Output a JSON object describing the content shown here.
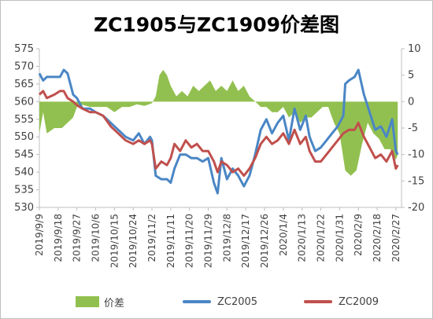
{
  "chart_data": {
    "type": "line",
    "title": "ZC1905与ZC1909价差图",
    "categories": [
      "2019/9/9",
      "2019/9/18",
      "2019/9/27",
      "2019/10/6",
      "2019/10/15",
      "2019/10/24",
      "2019/11/2",
      "2019/11/11",
      "2019/11/20",
      "2019/11/29",
      "2019/12/8",
      "2019/12/17",
      "2019/12/26",
      "2020/1/4",
      "2020/1/13",
      "2020/1/22",
      "2020/1/31",
      "2020/2/9",
      "2020/2/18",
      "2020/2/27"
    ],
    "left_axis": {
      "min": 530,
      "max": 575,
      "step": 5
    },
    "right_axis": {
      "min": -20,
      "max": 10,
      "step": 5
    },
    "legend_position": "bottom",
    "grid": false,
    "series": [
      {
        "name": "价差",
        "kind": "area",
        "axis": "right",
        "color": "#92c050",
        "points": [
          [
            0,
            -6
          ],
          [
            0.2,
            -2
          ],
          [
            0.4,
            -6
          ],
          [
            0.8,
            -5
          ],
          [
            1.2,
            -5
          ],
          [
            1.5,
            -4
          ],
          [
            1.8,
            -3
          ],
          [
            2.0,
            -1
          ],
          [
            2.3,
            -0.6
          ],
          [
            2.7,
            -1
          ],
          [
            3.2,
            -1
          ],
          [
            3.6,
            -1
          ],
          [
            4.0,
            -2
          ],
          [
            4.4,
            -1
          ],
          [
            4.8,
            -1
          ],
          [
            5.2,
            -0.5
          ],
          [
            5.6,
            -0.8
          ],
          [
            6.0,
            -0.3
          ],
          [
            6.2,
            1
          ],
          [
            6.4,
            5
          ],
          [
            6.6,
            6
          ],
          [
            6.8,
            5
          ],
          [
            7.0,
            3
          ],
          [
            7.3,
            1
          ],
          [
            7.6,
            2
          ],
          [
            7.9,
            1
          ],
          [
            8.2,
            3
          ],
          [
            8.5,
            2
          ],
          [
            8.8,
            3
          ],
          [
            9.1,
            4
          ],
          [
            9.4,
            2
          ],
          [
            9.7,
            3
          ],
          [
            10.0,
            2
          ],
          [
            10.3,
            4
          ],
          [
            10.6,
            2
          ],
          [
            10.9,
            3
          ],
          [
            11.2,
            1
          ],
          [
            11.5,
            0
          ],
          [
            11.8,
            -1
          ],
          [
            12.1,
            -1
          ],
          [
            12.4,
            -2
          ],
          [
            12.7,
            -2
          ],
          [
            13.0,
            -1
          ],
          [
            13.3,
            -3
          ],
          [
            13.6,
            -2
          ],
          [
            13.9,
            -4
          ],
          [
            14.2,
            -3
          ],
          [
            14.5,
            -3
          ],
          [
            14.8,
            -2
          ],
          [
            15.1,
            -1
          ],
          [
            15.4,
            -1
          ],
          [
            15.7,
            -4
          ],
          [
            16.0,
            -6
          ],
          [
            16.3,
            -13
          ],
          [
            16.6,
            -14
          ],
          [
            16.9,
            -13
          ],
          [
            17.2,
            -8
          ],
          [
            17.5,
            -4
          ],
          [
            17.8,
            -6
          ],
          [
            18.1,
            -7
          ],
          [
            18.4,
            -9
          ],
          [
            18.7,
            -9
          ],
          [
            19.0,
            -11
          ],
          [
            19.1,
            -10
          ]
        ]
      },
      {
        "name": "ZC2005",
        "kind": "line",
        "axis": "left",
        "color": "#4a86c5",
        "points": [
          [
            0,
            568
          ],
          [
            0.2,
            566
          ],
          [
            0.4,
            567
          ],
          [
            0.8,
            567
          ],
          [
            1.1,
            567
          ],
          [
            1.3,
            569
          ],
          [
            1.5,
            568
          ],
          [
            1.8,
            562
          ],
          [
            2.0,
            561
          ],
          [
            2.3,
            558
          ],
          [
            2.7,
            558
          ],
          [
            3.0,
            557
          ],
          [
            3.4,
            556
          ],
          [
            3.8,
            554
          ],
          [
            4.2,
            552
          ],
          [
            4.6,
            550
          ],
          [
            5.0,
            549
          ],
          [
            5.3,
            551
          ],
          [
            5.6,
            548
          ],
          [
            5.9,
            550
          ],
          [
            6.0,
            549
          ],
          [
            6.2,
            539
          ],
          [
            6.5,
            538
          ],
          [
            6.8,
            538
          ],
          [
            7.0,
            537
          ],
          [
            7.2,
            541
          ],
          [
            7.5,
            545
          ],
          [
            7.8,
            545
          ],
          [
            8.1,
            544
          ],
          [
            8.4,
            544
          ],
          [
            8.7,
            543
          ],
          [
            9.0,
            544
          ],
          [
            9.3,
            537
          ],
          [
            9.5,
            534
          ],
          [
            9.7,
            544
          ],
          [
            10.0,
            538
          ],
          [
            10.3,
            541
          ],
          [
            10.6,
            539
          ],
          [
            10.9,
            536
          ],
          [
            11.2,
            539
          ],
          [
            11.5,
            545
          ],
          [
            11.8,
            552
          ],
          [
            12.1,
            555
          ],
          [
            12.4,
            551
          ],
          [
            12.7,
            554
          ],
          [
            13.0,
            556
          ],
          [
            13.3,
            549
          ],
          [
            13.6,
            558
          ],
          [
            13.9,
            552
          ],
          [
            14.2,
            556
          ],
          [
            14.4,
            550
          ],
          [
            14.7,
            546
          ],
          [
            15.0,
            547
          ],
          [
            15.3,
            549
          ],
          [
            15.6,
            551
          ],
          [
            15.9,
            553
          ],
          [
            16.2,
            556
          ],
          [
            16.3,
            565
          ],
          [
            16.5,
            566
          ],
          [
            16.8,
            567
          ],
          [
            17.0,
            569
          ],
          [
            17.3,
            562
          ],
          [
            17.6,
            557
          ],
          [
            17.9,
            552
          ],
          [
            18.2,
            553
          ],
          [
            18.5,
            550
          ],
          [
            18.8,
            555
          ],
          [
            19.0,
            546
          ],
          [
            19.1,
            545
          ]
        ]
      },
      {
        "name": "ZC2009",
        "kind": "line",
        "axis": "left",
        "color": "#c0504d",
        "points": [
          [
            0,
            562
          ],
          [
            0.2,
            563
          ],
          [
            0.4,
            561
          ],
          [
            0.8,
            562
          ],
          [
            1.1,
            563
          ],
          [
            1.3,
            563
          ],
          [
            1.5,
            561
          ],
          [
            1.8,
            560
          ],
          [
            2.0,
            559
          ],
          [
            2.3,
            558
          ],
          [
            2.7,
            557
          ],
          [
            3.0,
            557
          ],
          [
            3.4,
            556
          ],
          [
            3.8,
            553
          ],
          [
            4.2,
            551
          ],
          [
            4.6,
            549
          ],
          [
            5.0,
            548
          ],
          [
            5.3,
            549
          ],
          [
            5.6,
            548
          ],
          [
            5.9,
            549
          ],
          [
            6.0,
            548
          ],
          [
            6.2,
            541
          ],
          [
            6.5,
            543
          ],
          [
            6.8,
            542
          ],
          [
            7.0,
            544
          ],
          [
            7.2,
            548
          ],
          [
            7.5,
            546
          ],
          [
            7.8,
            549
          ],
          [
            8.1,
            547
          ],
          [
            8.4,
            548
          ],
          [
            8.7,
            546
          ],
          [
            9.0,
            546
          ],
          [
            9.3,
            543
          ],
          [
            9.5,
            540
          ],
          [
            9.7,
            543
          ],
          [
            10.0,
            542
          ],
          [
            10.3,
            540
          ],
          [
            10.6,
            541
          ],
          [
            10.9,
            539
          ],
          [
            11.2,
            541
          ],
          [
            11.5,
            544
          ],
          [
            11.8,
            548
          ],
          [
            12.1,
            550
          ],
          [
            12.4,
            548
          ],
          [
            12.7,
            549
          ],
          [
            13.0,
            551
          ],
          [
            13.3,
            548
          ],
          [
            13.6,
            552
          ],
          [
            13.9,
            548
          ],
          [
            14.2,
            550
          ],
          [
            14.4,
            546
          ],
          [
            14.7,
            543
          ],
          [
            15.0,
            543
          ],
          [
            15.3,
            545
          ],
          [
            15.6,
            547
          ],
          [
            15.9,
            549
          ],
          [
            16.2,
            551
          ],
          [
            16.5,
            552
          ],
          [
            16.8,
            552
          ],
          [
            17.0,
            554
          ],
          [
            17.3,
            550
          ],
          [
            17.6,
            547
          ],
          [
            17.9,
            544
          ],
          [
            18.2,
            545
          ],
          [
            18.5,
            543
          ],
          [
            18.8,
            546
          ],
          [
            19.0,
            541
          ],
          [
            19.1,
            542
          ]
        ]
      }
    ]
  }
}
